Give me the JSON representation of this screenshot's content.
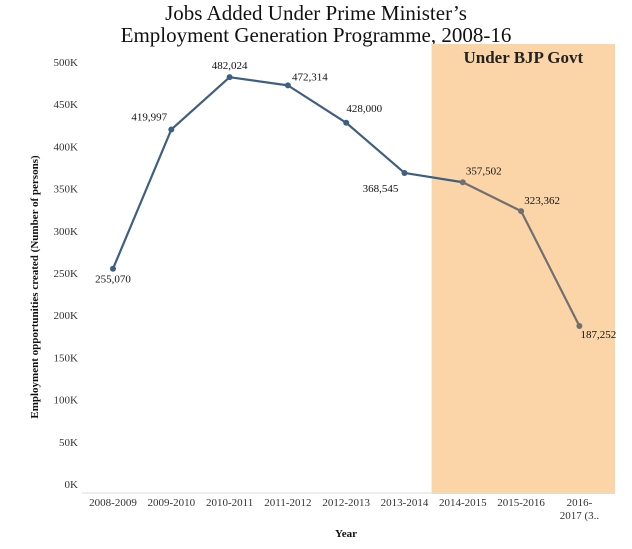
{
  "chart_data": {
    "type": "line",
    "title_line1": "Jobs Added Under Prime Minister’s",
    "title_line2": "Employment Generation Programme, 2008-16",
    "xlabel": "Year",
    "ylabel": "Employment opportunities created (Number of persons)",
    "ylim": [
      0,
      500000
    ],
    "yticks": [
      0,
      50000,
      100000,
      150000,
      200000,
      250000,
      300000,
      350000,
      400000,
      450000,
      500000
    ],
    "ytick_labels": [
      "0K",
      "50K",
      "100K",
      "150K",
      "200K",
      "250K",
      "300K",
      "350K",
      "400K",
      "450K",
      "500K"
    ],
    "categories": [
      "2008-2009",
      "2009-2010",
      "2010-2011",
      "2011-2012",
      "2012-2013",
      "2013-2014",
      "2014-2015",
      "2015-2016",
      "2016-2017 (3.."
    ],
    "category_lines": [
      [
        "2008-2009"
      ],
      [
        "2009-2010"
      ],
      [
        "2010-2011"
      ],
      [
        "2011-2012"
      ],
      [
        "2012-2013"
      ],
      [
        "2013-2014"
      ],
      [
        "2014-2015"
      ],
      [
        "2015-2016"
      ],
      [
        "2016-",
        "2017 (3.."
      ]
    ],
    "values": [
      255070,
      419997,
      482024,
      472314,
      428000,
      368545,
      357502,
      323362,
      187252
    ],
    "data_labels": [
      "255,070",
      "419,997",
      "482,024",
      "472,314",
      "428,000",
      "368,545",
      "357,502",
      "323,362",
      "187,252"
    ],
    "highlight_region": {
      "label": "Under BJP Govt",
      "start_category": "2014-2015",
      "end_category": "2016-2017 (3..",
      "color": "#fbd5a8"
    },
    "colors": {
      "before": "#3f5f80",
      "after": "#707070"
    },
    "grid": false
  }
}
